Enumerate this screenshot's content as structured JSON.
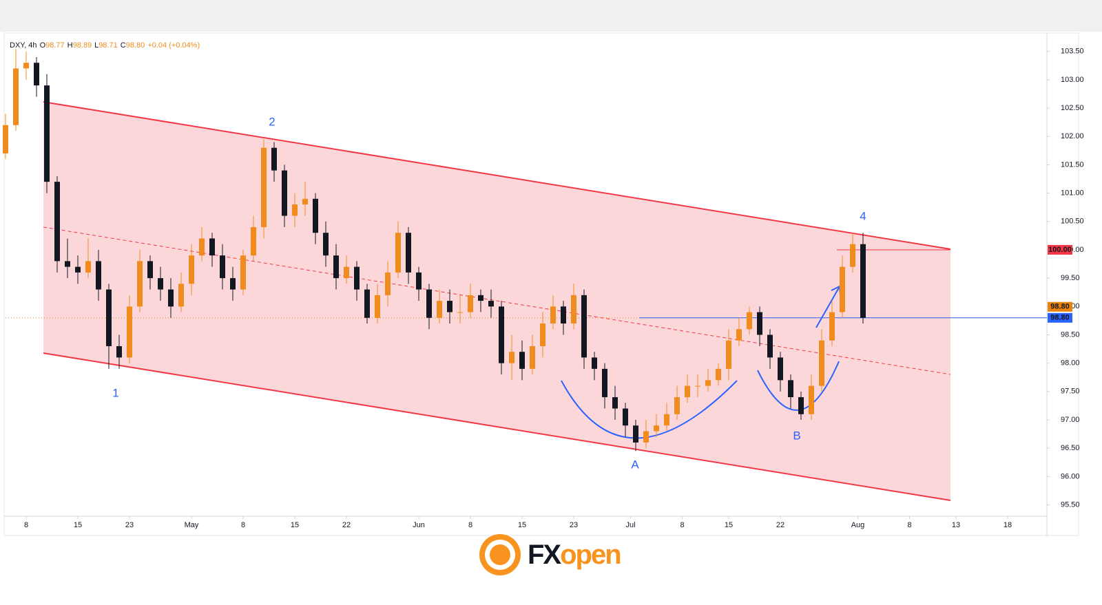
{
  "chart_data": {
    "type": "candlestick",
    "symbol": "DXY, 4h",
    "ohlc": [
      {
        "key": "O",
        "value": "98.77"
      },
      {
        "key": "H",
        "value": "98.89"
      },
      {
        "key": "L",
        "value": "98.71"
      },
      {
        "key": "C",
        "value": "98.80"
      }
    ],
    "change": "+0.04 (+0.04%)",
    "up_color": "#f08c1e",
    "down_color": "#131722",
    "xlim": [
      0,
      100.8
    ],
    "xticks": [
      {
        "value": 2,
        "label": "8"
      },
      {
        "value": 7,
        "label": "15"
      },
      {
        "value": 12,
        "label": "23"
      },
      {
        "value": 18,
        "label": "May"
      },
      {
        "value": 23,
        "label": "8"
      },
      {
        "value": 28,
        "label": "15"
      },
      {
        "value": 33,
        "label": "22"
      },
      {
        "value": 40,
        "label": "Jun"
      },
      {
        "value": 45,
        "label": "8"
      },
      {
        "value": 50,
        "label": "15"
      },
      {
        "value": 55,
        "label": "23"
      },
      {
        "value": 60.5,
        "label": "Jul"
      },
      {
        "value": 65.5,
        "label": "8"
      },
      {
        "value": 70,
        "label": "15"
      },
      {
        "value": 75,
        "label": "22"
      },
      {
        "value": 82.5,
        "label": "Aug"
      },
      {
        "value": 87.5,
        "label": "8"
      },
      {
        "value": 92,
        "label": "13"
      },
      {
        "value": 97,
        "label": "18"
      }
    ],
    "ylim": [
      95.3,
      103.8
    ],
    "yticks": [
      {
        "value": 95.5,
        "label": "95.50"
      },
      {
        "value": 96,
        "label": "96.00"
      },
      {
        "value": 96.5,
        "label": "96.50"
      },
      {
        "value": 97,
        "label": "97.00"
      },
      {
        "value": 97.5,
        "label": "97.50"
      },
      {
        "value": 98,
        "label": "98.00"
      },
      {
        "value": 98.5,
        "label": "98.50"
      },
      {
        "value": 99,
        "label": "99.00"
      },
      {
        "value": 99.5,
        "label": "99.50"
      },
      {
        "value": 100,
        "label": "100.00"
      },
      {
        "value": 100.5,
        "label": "100.50"
      },
      {
        "value": 101,
        "label": "101.00"
      },
      {
        "value": 101.5,
        "label": "101.50"
      },
      {
        "value": 102,
        "label": "102.00"
      },
      {
        "value": 102.5,
        "label": "102.50"
      },
      {
        "value": 103,
        "label": "103.00"
      },
      {
        "value": 103.5,
        "label": "103.50"
      }
    ],
    "grid": false,
    "x": [
      0,
      1,
      2,
      3,
      4,
      5,
      6,
      7,
      8,
      9,
      10,
      11,
      12,
      13,
      14,
      15,
      16,
      17,
      18,
      19,
      20,
      21,
      22,
      23,
      24,
      25,
      26,
      27,
      28,
      29,
      30,
      31,
      32,
      33,
      34,
      35,
      36,
      37,
      38,
      39,
      40,
      41,
      42,
      43,
      44,
      45,
      46,
      47,
      48,
      49,
      50,
      51,
      52,
      53,
      54,
      55,
      56,
      57,
      58,
      59,
      60,
      61,
      62,
      63,
      64,
      65,
      66,
      67,
      68,
      69,
      70,
      71,
      72,
      73,
      74,
      75,
      76,
      77,
      78,
      79,
      80,
      81,
      82,
      83
    ],
    "open": [
      101.7,
      102.2,
      103.2,
      103.3,
      102.9,
      101.2,
      99.8,
      99.7,
      99.6,
      99.8,
      99.3,
      98.3,
      98.1,
      99.0,
      99.8,
      99.5,
      99.3,
      99.0,
      99.4,
      99.9,
      100.2,
      99.9,
      99.5,
      99.3,
      99.9,
      100.4,
      101.8,
      101.4,
      100.6,
      100.8,
      100.9,
      100.3,
      99.9,
      99.5,
      99.7,
      99.3,
      98.8,
      99.2,
      99.6,
      100.3,
      99.6,
      99.3,
      98.8,
      99.1,
      98.9,
      98.9,
      99.2,
      99.1,
      99.0,
      98.0,
      98.2,
      97.9,
      98.3,
      98.7,
      99.0,
      98.7,
      99.2,
      98.1,
      97.9,
      97.4,
      97.2,
      96.9,
      96.6,
      96.8,
      96.9,
      97.1,
      97.4,
      97.6,
      97.6,
      97.7,
      97.9,
      98.4,
      98.6,
      98.9,
      98.5,
      98.1,
      97.7,
      97.4,
      97.1,
      97.6,
      98.4,
      98.9,
      99.7,
      100.1
    ],
    "high": [
      102.4,
      103.55,
      103.5,
      103.4,
      103.1,
      101.3,
      100.2,
      99.9,
      100.2,
      100.0,
      99.4,
      98.5,
      99.2,
      100.0,
      99.9,
      99.7,
      99.5,
      99.6,
      100.1,
      100.4,
      100.3,
      100.1,
      99.7,
      100.0,
      100.6,
      101.95,
      101.9,
      101.5,
      101.0,
      101.2,
      101.0,
      100.5,
      100.1,
      99.9,
      99.8,
      99.4,
      99.4,
      99.8,
      100.5,
      100.4,
      99.7,
      99.4,
      99.3,
      99.3,
      99.2,
      99.4,
      99.3,
      99.3,
      99.1,
      98.5,
      98.4,
      98.5,
      98.9,
      99.2,
      99.1,
      99.4,
      99.3,
      98.2,
      98.0,
      97.6,
      97.3,
      97.0,
      97.0,
      97.1,
      97.3,
      97.6,
      97.8,
      97.8,
      97.9,
      98.0,
      98.6,
      98.8,
      99.0,
      99.0,
      98.6,
      98.2,
      97.8,
      97.5,
      97.8,
      98.6,
      99.1,
      99.9,
      100.3,
      100.3
    ],
    "low": [
      101.6,
      102.1,
      103.0,
      102.7,
      101.0,
      99.6,
      99.5,
      99.4,
      99.5,
      99.1,
      97.9,
      97.9,
      98.0,
      98.9,
      99.3,
      99.1,
      98.8,
      98.9,
      99.2,
      99.8,
      99.7,
      99.3,
      99.1,
      99.2,
      99.8,
      100.2,
      101.2,
      100.4,
      100.4,
      100.6,
      100.1,
      99.7,
      99.3,
      99.4,
      99.1,
      98.7,
      98.7,
      99.0,
      99.5,
      99.4,
      99.1,
      98.6,
      98.7,
      98.7,
      98.7,
      98.8,
      98.9,
      98.8,
      97.8,
      97.7,
      97.7,
      97.8,
      98.1,
      98.6,
      98.5,
      98.6,
      97.9,
      97.7,
      97.2,
      97.0,
      96.7,
      96.45,
      96.5,
      96.7,
      96.8,
      97.0,
      97.3,
      97.4,
      97.5,
      97.6,
      97.7,
      98.3,
      98.5,
      98.3,
      97.9,
      97.5,
      97.2,
      97.0,
      97.0,
      97.5,
      98.3,
      98.8,
      99.6,
      98.7
    ],
    "close": [
      102.2,
      103.2,
      103.3,
      102.9,
      101.2,
      99.8,
      99.7,
      99.6,
      99.8,
      99.3,
      98.3,
      98.1,
      99.0,
      99.8,
      99.5,
      99.3,
      99.0,
      99.4,
      99.9,
      100.2,
      99.9,
      99.5,
      99.3,
      99.9,
      100.4,
      101.8,
      101.4,
      100.6,
      100.8,
      100.9,
      100.3,
      99.9,
      99.5,
      99.7,
      99.3,
      98.8,
      99.2,
      99.6,
      100.3,
      99.6,
      99.3,
      98.8,
      99.1,
      98.9,
      98.9,
      99.2,
      99.1,
      99.0,
      98.0,
      98.2,
      97.9,
      98.3,
      98.7,
      99.0,
      98.7,
      99.2,
      98.1,
      97.9,
      97.4,
      97.2,
      96.9,
      96.6,
      96.8,
      96.9,
      97.1,
      97.4,
      97.6,
      97.6,
      97.7,
      97.9,
      98.4,
      98.6,
      98.9,
      98.5,
      98.1,
      97.7,
      97.4,
      97.1,
      97.6,
      98.4,
      98.9,
      99.7,
      100.1,
      98.8
    ],
    "levels": [
      {
        "value": 100,
        "label": "100.00",
        "color": "#f23645"
      },
      {
        "value": 98.8,
        "label": "98.80",
        "color": "#e8840c"
      },
      {
        "value": 98.8,
        "label": "98.80",
        "color": "#2962ff"
      }
    ],
    "annotations": [
      "1",
      "2",
      "4",
      "A",
      "B"
    ],
    "logo": {
      "prefix": "FX",
      "suffix": "open"
    }
  }
}
